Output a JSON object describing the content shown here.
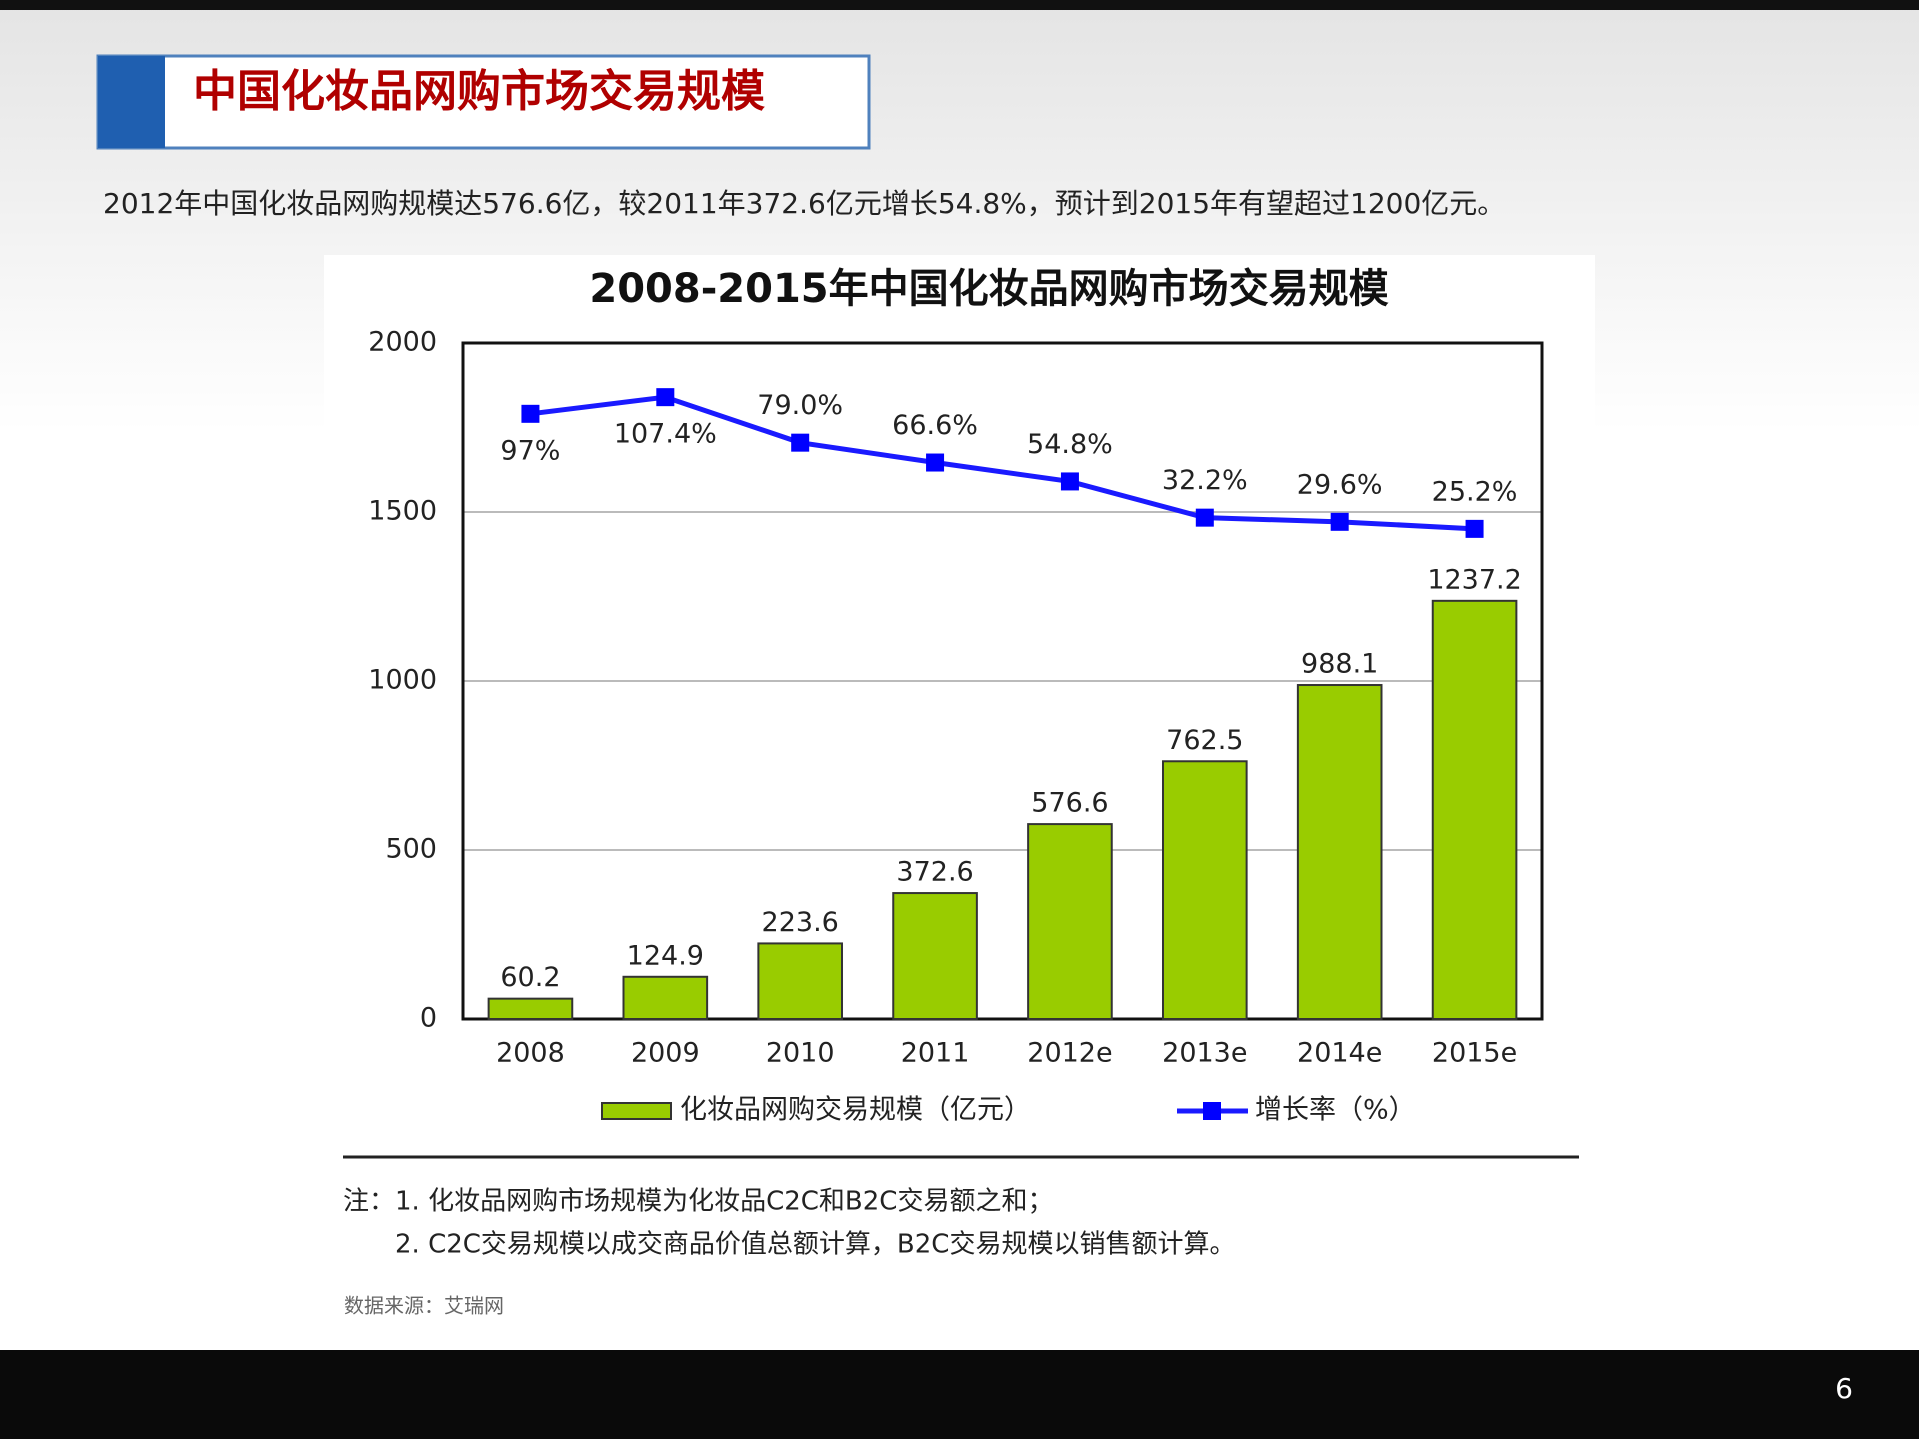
{
  "header": {
    "title": "中国化妆品网购市场交易规模"
  },
  "subtitle": "2012年中国化妆品网购规模达576.6亿，较2011年372.6亿元增长54.8%，预计到2015年有望超过1200亿元。",
  "chart_data": {
    "type": "bar",
    "title": "2008-2015年中国化妆品网购市场交易规模",
    "categories": [
      "2008",
      "2009",
      "2010",
      "2011",
      "2012e",
      "2013e",
      "2014e",
      "2015e"
    ],
    "series": [
      {
        "name": "化妆品网购交易规模（亿元）",
        "color": "#99cc00",
        "values": [
          60.2,
          124.9,
          223.6,
          372.6,
          576.6,
          762.5,
          988.1,
          1237.2
        ]
      },
      {
        "name": "增长率（%）",
        "color": "#1a1aff",
        "type": "line",
        "axis": "y2",
        "values": [
          97,
          107.4,
          79.0,
          66.6,
          54.8,
          32.2,
          29.6,
          25.2
        ],
        "value_labels": [
          "97%",
          "107.4%",
          "79.0%",
          "66.6%",
          "54.8%",
          "32.2%",
          "29.6%",
          "25.2%"
        ]
      }
    ],
    "ylim": [
      0,
      2000
    ],
    "yticks": [
      0,
      500,
      1000,
      1500,
      2000
    ],
    "y2lim": [
      -280.7,
      141.2
    ],
    "grid": true
  },
  "notes": [
    "注：1. 化妆品网购市场规模为化妆品C2C和B2C交易额之和；",
    "2. C2C交易规模以成交商品价值总额计算，B2C交易规模以销售额计算。"
  ],
  "source": "数据来源：艾瑞网",
  "page_number": 6
}
